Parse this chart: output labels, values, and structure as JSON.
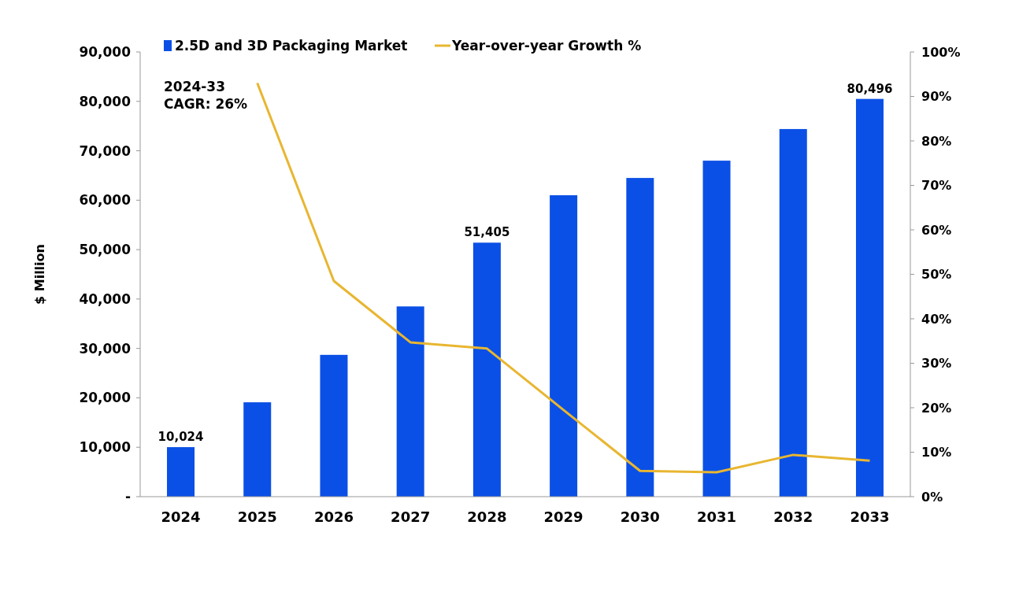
{
  "chart_data": {
    "type": "bar",
    "categories": [
      "2024",
      "2025",
      "2026",
      "2027",
      "2028",
      "2029",
      "2030",
      "2031",
      "2032",
      "2033"
    ],
    "series": [
      {
        "name": "2.5D and 3D Packaging Market",
        "color": "#0b50e6",
        "values": [
          10024,
          19100,
          28700,
          38500,
          51405,
          61000,
          64500,
          68000,
          74400,
          80496
        ],
        "value_labels": [
          "10,024",
          null,
          null,
          null,
          "51,405",
          null,
          null,
          null,
          null,
          "80,496"
        ]
      },
      {
        "name": "Year-over-year Growth %",
        "type": "line",
        "axis": "y2",
        "color": "#e8b630",
        "values": [
          null,
          93,
          48.5,
          34.7,
          33.3,
          19.5,
          5.8,
          5.5,
          9.4,
          8.1
        ]
      }
    ],
    "ylabel": "$ Million",
    "ylim": [
      0,
      90000
    ],
    "yticks": [
      {
        "value": 0,
        "label": "-"
      },
      {
        "value": 10000,
        "label": "10,000"
      },
      {
        "value": 20000,
        "label": "20,000"
      },
      {
        "value": 30000,
        "label": "30,000"
      },
      {
        "value": 40000,
        "label": "40,000"
      },
      {
        "value": 50000,
        "label": "50,000"
      },
      {
        "value": 60000,
        "label": "60,000"
      },
      {
        "value": 70000,
        "label": "70,000"
      },
      {
        "value": 80000,
        "label": "80,000"
      },
      {
        "value": 90000,
        "label": "90,000"
      }
    ],
    "y2lim": [
      0,
      100
    ],
    "y2ticks": [
      {
        "value": 0,
        "label": "0%"
      },
      {
        "value": 10,
        "label": "10%"
      },
      {
        "value": 20,
        "label": "20%"
      },
      {
        "value": 30,
        "label": "30%"
      },
      {
        "value": 40,
        "label": "40%"
      },
      {
        "value": 50,
        "label": "50%"
      },
      {
        "value": 60,
        "label": "60%"
      },
      {
        "value": 70,
        "label": "70%"
      },
      {
        "value": 80,
        "label": "80%"
      },
      {
        "value": 90,
        "label": "90%"
      },
      {
        "value": 100,
        "label": "100%"
      }
    ],
    "annotations": [
      "2024-33\nCAGR: 26%"
    ],
    "legend": "top",
    "grid": false
  }
}
